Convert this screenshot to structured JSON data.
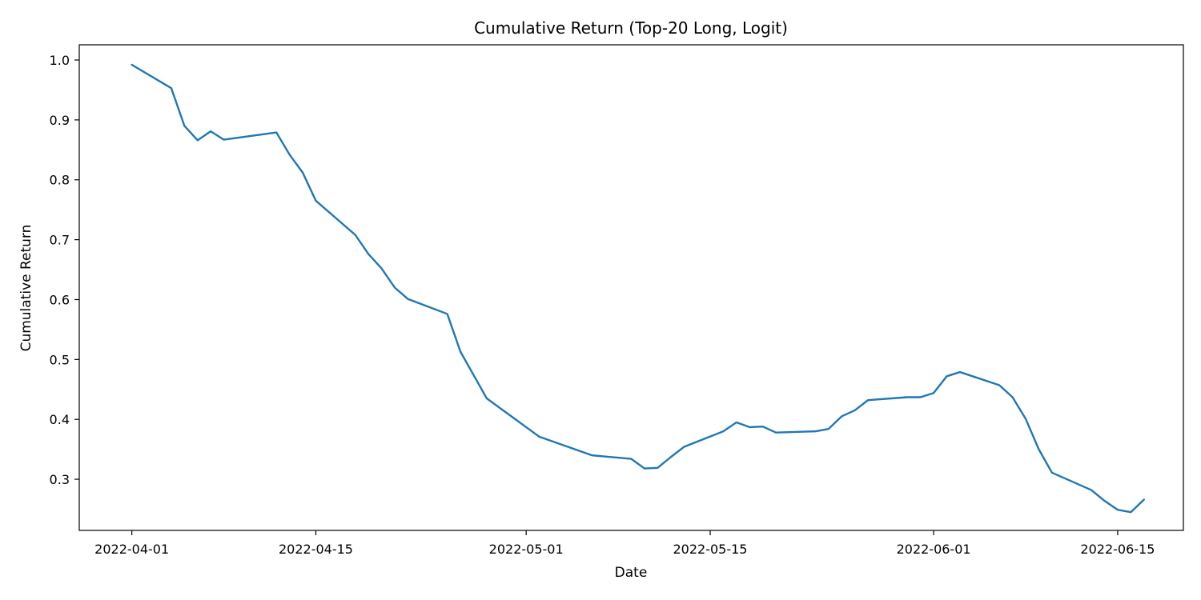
{
  "chart_data": {
    "type": "line",
    "title": "Cumulative Return (Top-20 Long, Logit)",
    "xlabel": "Date",
    "ylabel": "Cumulative Return",
    "xlim": [
      "2022-03-28",
      "2022-06-20"
    ],
    "ylim": [
      0.2146,
      1.0254
    ],
    "grid": false,
    "line_color": "#1f77b4",
    "x_ticks": [
      "2022-04-01",
      "2022-04-15",
      "2022-05-01",
      "2022-05-15",
      "2022-06-01",
      "2022-06-15"
    ],
    "y_ticks": [
      "0.3",
      "0.4",
      "0.5",
      "0.6",
      "0.7",
      "0.8",
      "0.9",
      "1.0"
    ],
    "series": [
      {
        "x": [
          "2022-04-01",
          "2022-04-04",
          "2022-04-05",
          "2022-04-06",
          "2022-04-07",
          "2022-04-08",
          "2022-04-12",
          "2022-04-13",
          "2022-04-14",
          "2022-04-15",
          "2022-04-18",
          "2022-04-19",
          "2022-04-20",
          "2022-04-21",
          "2022-04-22",
          "2022-04-25",
          "2022-04-26",
          "2022-04-27",
          "2022-04-28",
          "2022-05-02",
          "2022-05-06",
          "2022-05-09",
          "2022-05-10",
          "2022-05-11",
          "2022-05-12",
          "2022-05-13",
          "2022-05-16",
          "2022-05-17",
          "2022-05-18",
          "2022-05-19",
          "2022-05-20",
          "2022-05-23",
          "2022-05-24",
          "2022-05-25",
          "2022-05-26",
          "2022-05-27",
          "2022-05-30",
          "2022-05-31",
          "2022-06-01",
          "2022-06-02",
          "2022-06-03",
          "2022-06-06",
          "2022-06-07",
          "2022-06-08",
          "2022-06-09",
          "2022-06-10",
          "2022-06-13",
          "2022-06-14",
          "2022-06-15",
          "2022-06-16",
          "2022-06-17"
        ],
        "y": [
          0.992,
          0.953,
          0.89,
          0.866,
          0.881,
          0.867,
          0.879,
          0.842,
          0.812,
          0.765,
          0.708,
          0.676,
          0.652,
          0.62,
          0.601,
          0.576,
          0.513,
          0.474,
          0.435,
          0.371,
          0.34,
          0.334,
          0.318,
          0.319,
          0.337,
          0.354,
          0.38,
          0.395,
          0.387,
          0.388,
          0.378,
          0.38,
          0.384,
          0.405,
          0.415,
          0.432,
          0.437,
          0.437,
          0.444,
          0.472,
          0.479,
          0.457,
          0.437,
          0.401,
          0.35,
          0.311,
          0.282,
          0.264,
          0.249,
          0.245,
          0.266
        ]
      }
    ]
  }
}
